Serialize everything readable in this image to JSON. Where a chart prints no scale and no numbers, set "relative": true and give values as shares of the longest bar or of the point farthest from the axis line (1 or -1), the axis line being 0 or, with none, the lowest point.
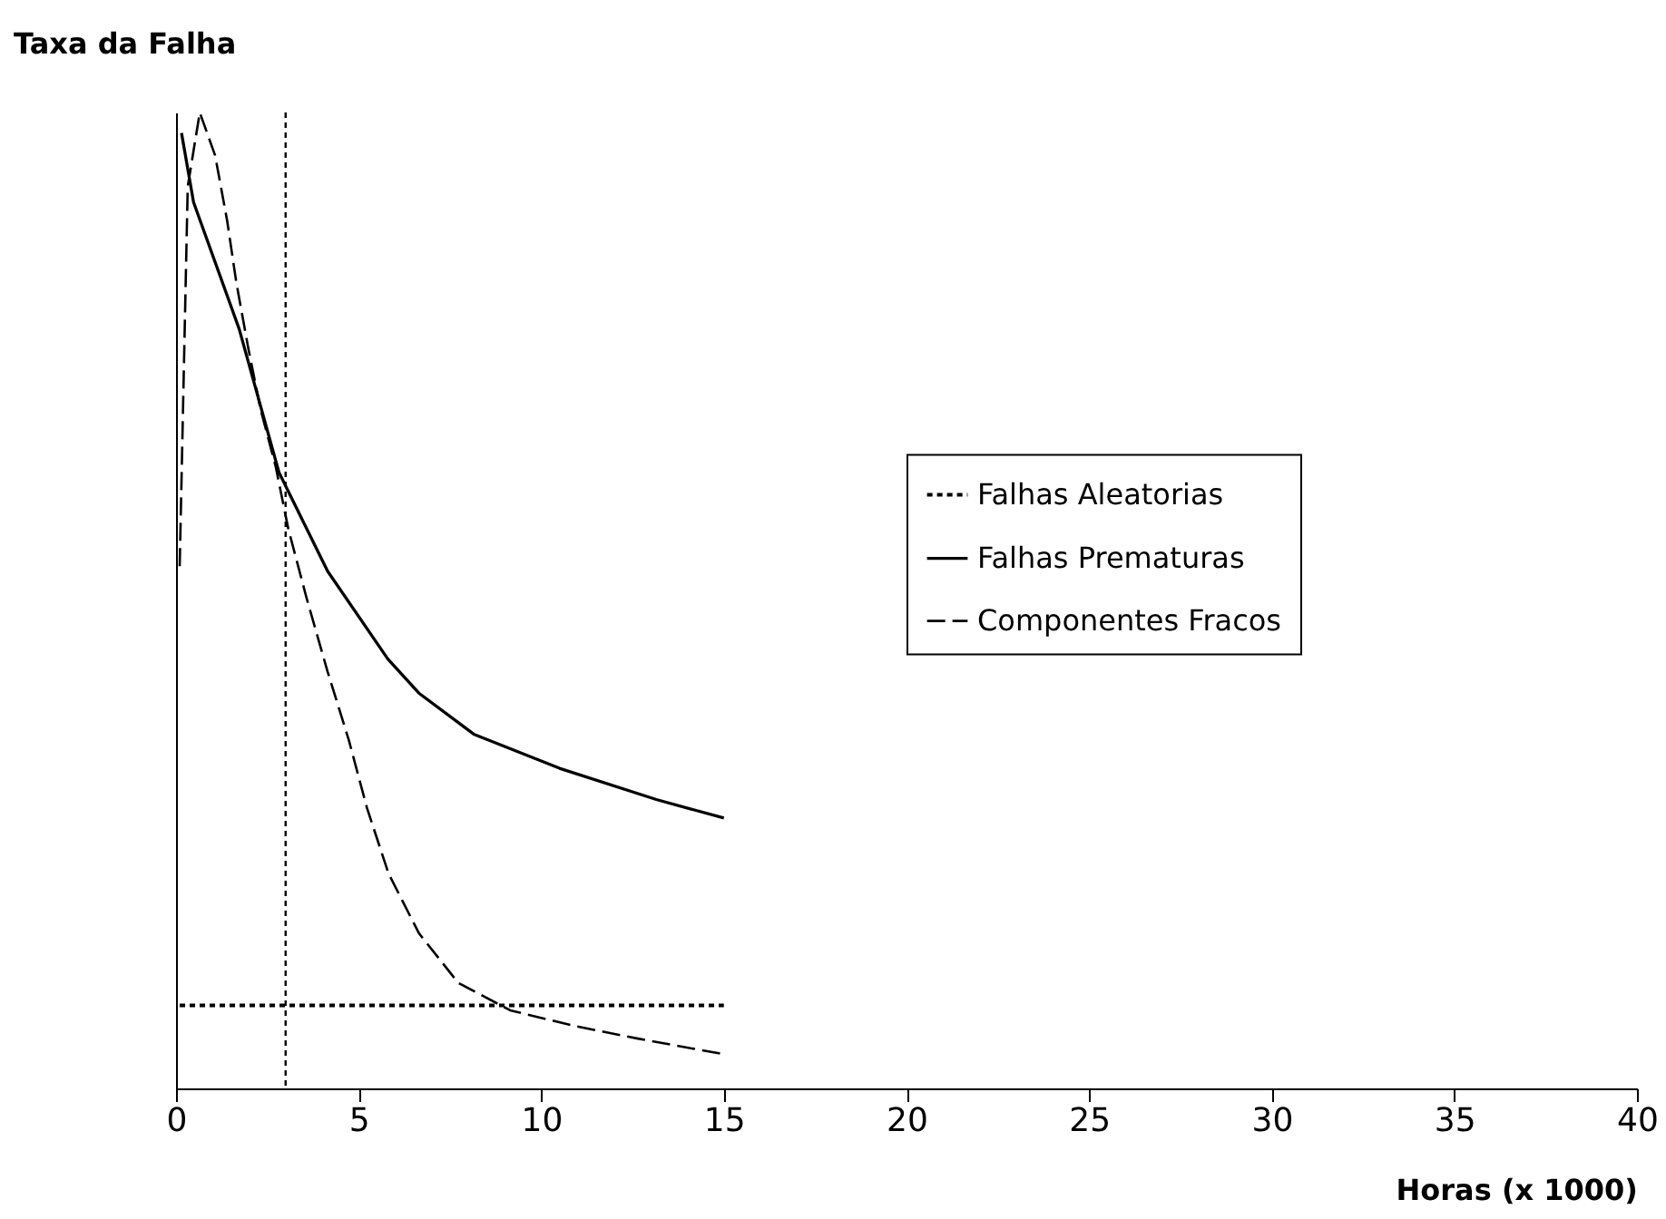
{
  "chart_data": {
    "type": "line",
    "ylabel": "Taxa da Falha",
    "xlabel": "Horas (x 1000)",
    "relative": true,
    "xlim": [
      0,
      40
    ],
    "xticks": [
      0,
      5,
      10,
      15,
      20,
      25,
      30,
      35,
      40
    ],
    "grid": false,
    "legend": "right",
    "marker": "none",
    "series": [
      {
        "name": "Falhas Aleatorias",
        "color": "#000000",
        "line_style": "dotted",
        "x": [
          0.1,
          15
        ],
        "values": [
          0.085,
          0.085
        ]
      },
      {
        "name": "Falhas Prematuras",
        "color": "#000000",
        "line_style": "solid",
        "x": [
          0.15,
          0.48,
          1.73,
          2.82,
          4.15,
          5.8,
          6.65,
          8.15,
          10.5,
          13.15,
          15
        ],
        "values": [
          0.979,
          0.908,
          0.778,
          0.631,
          0.53,
          0.44,
          0.405,
          0.363,
          0.328,
          0.296,
          0.277
        ]
      },
      {
        "name": "Componentes Fracos",
        "color": "#000000",
        "line_style": "dashed",
        "x": [
          0.1,
          0.32,
          0.65,
          1.07,
          1.4,
          1.65,
          1.98,
          2.32,
          2.73,
          3.07,
          3.57,
          4.15,
          4.73,
          5.23,
          5.82,
          6.65,
          7.73,
          9.15,
          10.9,
          12.65,
          15
        ],
        "values": [
          0.535,
          0.924,
          1,
          0.956,
          0.889,
          0.826,
          0.758,
          0.695,
          0.637,
          0.574,
          0.503,
          0.427,
          0.357,
          0.287,
          0.22,
          0.159,
          0.108,
          0.08,
          0.064,
          0.051,
          0.035
        ]
      }
    ],
    "ref_lines": [
      {
        "axis": "x",
        "value": 3,
        "line_style": "dotted",
        "color": "#000000"
      }
    ]
  }
}
